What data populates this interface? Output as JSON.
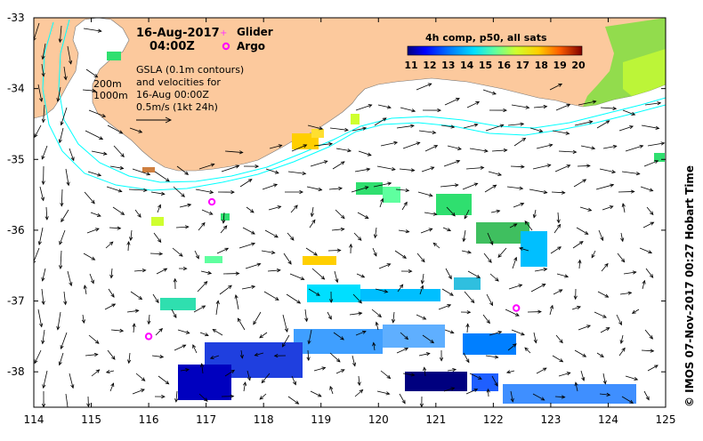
{
  "title": {
    "date": "16-Aug-2017",
    "time": "04:00Z"
  },
  "legend": {
    "glider_label": "Glider",
    "argo_label": "Argo",
    "glider_color": "#ff33ff",
    "argo_color": "#ff00ff"
  },
  "depth_labels": {
    "d200": "200m",
    "d1000": "1000m"
  },
  "gsla_note": {
    "line1": "GSLA (0.1m contours)",
    "line2": "and velocities for",
    "line3": "16-Aug 00:00Z",
    "line4": "0.5m/s (1kt 24h)"
  },
  "colorbar": {
    "title": "4h comp, p50, all sats",
    "ticks": [
      "11",
      "12",
      "13",
      "14",
      "15",
      "16",
      "17",
      "18",
      "19",
      "20"
    ],
    "colors": [
      "#00007f",
      "#0000ff",
      "#007fff",
      "#00dfff",
      "#2fffcf",
      "#7fff7f",
      "#cfff2f",
      "#ffcf00",
      "#ff5f00",
      "#df0000",
      "#7f0000"
    ]
  },
  "axes": {
    "x_ticks": [
      "114",
      "115",
      "116",
      "117",
      "118",
      "119",
      "120",
      "121",
      "122",
      "123",
      "124",
      "125"
    ],
    "y_ticks": [
      "-33",
      "-34",
      "-35",
      "-36",
      "-37",
      "-38"
    ],
    "lon_range": [
      114,
      125
    ],
    "lat_range": [
      -33,
      -38.5
    ]
  },
  "side_label": "© IMOS 07-Nov-2017 00:27 Hobart Time",
  "map": {
    "land_color": "#fcc99d",
    "isobath_color": "#00ffff",
    "argo_floats": [
      [
        116.0,
        -37.5
      ],
      [
        117.1,
        -35.6
      ],
      [
        122.4,
        -37.1
      ]
    ],
    "glider": [
      117.1,
      -35.6
    ]
  }
}
